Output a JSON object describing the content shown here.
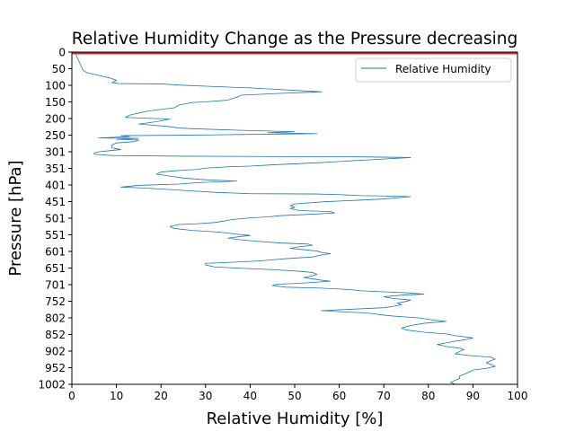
{
  "chart_data": {
    "type": "line",
    "title": "Relative Humidity Change as the Pressure decreasing",
    "xlabel": "Relative Humidity [%]",
    "ylabel": "Pressure [hPa]",
    "xlim": [
      0,
      100
    ],
    "ylim": [
      1002,
      0
    ],
    "y_inverted": true,
    "grid": false,
    "legend_position": "top-right",
    "x_ticks": [
      "0",
      "10",
      "20",
      "30",
      "40",
      "50",
      "60",
      "70",
      "80",
      "90",
      "100"
    ],
    "y_ticks": [
      "0",
      "50",
      "100",
      "150",
      "200",
      "250",
      "301",
      "351",
      "401",
      "451",
      "501",
      "551",
      "601",
      "651",
      "701",
      "752",
      "802",
      "852",
      "902",
      "952",
      "1002"
    ],
    "series_color": "#1f77b4",
    "top_band_color": "#d62728",
    "series": [
      {
        "name": "Relative Humidity",
        "points": [
          [
            0.5,
            0
          ],
          [
            1,
            10
          ],
          [
            1.5,
            25
          ],
          [
            2,
            40
          ],
          [
            2.5,
            55
          ],
          [
            3.5,
            63
          ],
          [
            6,
            70
          ],
          [
            8.5,
            78
          ],
          [
            10,
            85
          ],
          [
            9,
            92
          ],
          [
            10.5,
            95
          ],
          [
            20,
            96
          ],
          [
            25,
            100
          ],
          [
            32,
            104
          ],
          [
            40,
            108
          ],
          [
            56,
            120
          ],
          [
            46,
            125
          ],
          [
            38,
            130
          ],
          [
            37,
            136
          ],
          [
            36,
            140
          ],
          [
            35,
            145
          ],
          [
            30,
            150
          ],
          [
            27,
            152
          ],
          [
            24,
            160
          ],
          [
            23,
            168
          ],
          [
            17,
            178
          ],
          [
            13,
            190
          ],
          [
            12,
            197
          ],
          [
            18,
            200
          ],
          [
            22,
            202
          ],
          [
            19,
            210
          ],
          [
            15,
            217
          ],
          [
            22,
            225
          ],
          [
            24,
            229
          ],
          [
            27,
            231
          ],
          [
            38,
            236
          ],
          [
            50,
            240
          ],
          [
            44,
            243
          ],
          [
            55,
            246
          ],
          [
            36,
            249
          ],
          [
            22,
            251
          ],
          [
            11,
            252
          ],
          [
            13,
            255
          ],
          [
            6,
            259
          ],
          [
            15,
            260
          ],
          [
            10,
            263
          ],
          [
            15,
            265
          ],
          [
            14,
            270
          ],
          [
            10,
            274
          ],
          [
            9,
            280
          ],
          [
            9,
            289
          ],
          [
            11,
            294
          ],
          [
            8,
            298
          ],
          [
            6,
            301
          ],
          [
            5,
            304
          ],
          [
            5,
            308
          ],
          [
            9,
            312
          ],
          [
            25,
            314
          ],
          [
            65,
            316
          ],
          [
            76,
            318
          ],
          [
            68,
            324
          ],
          [
            60,
            330
          ],
          [
            55,
            334
          ],
          [
            50,
            337
          ],
          [
            45,
            340
          ],
          [
            40,
            344
          ],
          [
            35,
            346
          ],
          [
            30,
            350
          ],
          [
            28,
            354
          ],
          [
            23,
            358
          ],
          [
            20,
            362
          ],
          [
            19,
            368
          ],
          [
            22,
            374
          ],
          [
            25,
            380
          ],
          [
            30,
            385
          ],
          [
            37,
            389
          ],
          [
            28,
            394
          ],
          [
            24,
            398
          ],
          [
            15,
            402
          ],
          [
            11,
            407
          ],
          [
            16,
            410
          ],
          [
            20,
            413
          ],
          [
            26,
            418
          ],
          [
            32,
            423
          ],
          [
            40,
            427
          ],
          [
            55,
            428
          ],
          [
            60,
            430
          ],
          [
            65,
            433
          ],
          [
            70,
            434
          ],
          [
            76,
            436
          ],
          [
            70,
            443
          ],
          [
            64,
            447
          ],
          [
            57,
            451
          ],
          [
            50,
            458
          ],
          [
            49,
            463
          ],
          [
            50,
            468
          ],
          [
            49,
            472
          ],
          [
            51,
            478
          ],
          [
            58,
            481
          ],
          [
            59,
            485
          ],
          [
            54,
            489
          ],
          [
            47,
            493
          ],
          [
            44,
            497
          ],
          [
            40,
            500
          ],
          [
            36,
            505
          ],
          [
            34,
            510
          ],
          [
            32,
            514
          ],
          [
            28,
            518
          ],
          [
            24,
            520
          ],
          [
            22,
            526
          ],
          [
            23,
            532
          ],
          [
            27,
            538
          ],
          [
            33,
            543
          ],
          [
            37,
            549
          ],
          [
            40,
            553
          ],
          [
            38,
            556
          ],
          [
            35,
            561
          ],
          [
            37,
            565
          ],
          [
            41,
            570
          ],
          [
            47,
            576
          ],
          [
            53,
            579
          ],
          [
            54,
            583
          ],
          [
            51,
            587
          ],
          [
            49,
            592
          ],
          [
            52,
            596
          ],
          [
            55,
            600
          ],
          [
            56,
            604
          ],
          [
            58,
            608
          ],
          [
            56,
            612
          ],
          [
            54,
            618
          ],
          [
            48,
            623
          ],
          [
            42,
            630
          ],
          [
            34,
            635
          ],
          [
            30,
            637
          ],
          [
            30,
            642
          ],
          [
            32,
            648
          ],
          [
            38,
            652
          ],
          [
            45,
            656
          ],
          [
            52,
            662
          ],
          [
            54,
            665
          ],
          [
            55,
            670
          ],
          [
            54,
            675
          ],
          [
            52,
            680
          ],
          [
            54,
            684
          ],
          [
            56,
            688
          ],
          [
            58,
            691
          ],
          [
            55,
            694
          ],
          [
            50,
            698
          ],
          [
            46,
            700
          ],
          [
            45,
            704
          ],
          [
            48,
            709
          ],
          [
            56,
            712
          ],
          [
            62,
            716
          ],
          [
            65,
            720
          ],
          [
            70,
            723
          ],
          [
            75,
            726
          ],
          [
            79,
            730
          ],
          [
            74,
            733
          ],
          [
            70,
            738
          ],
          [
            72,
            743
          ],
          [
            76,
            748
          ],
          [
            75,
            752
          ],
          [
            73,
            757
          ],
          [
            74,
            762
          ],
          [
            72,
            767
          ],
          [
            70,
            771
          ],
          [
            62,
            776
          ],
          [
            56,
            780
          ],
          [
            60,
            783
          ],
          [
            65,
            786
          ],
          [
            68,
            789
          ],
          [
            69,
            792
          ],
          [
            72,
            796
          ],
          [
            78,
            802
          ],
          [
            81,
            808
          ],
          [
            84,
            812
          ],
          [
            79,
            818
          ],
          [
            76,
            825
          ],
          [
            74,
            832
          ],
          [
            75,
            838
          ],
          [
            79,
            845
          ],
          [
            84,
            850
          ],
          [
            86,
            855
          ],
          [
            90,
            862
          ],
          [
            88,
            868
          ],
          [
            86,
            872
          ],
          [
            84,
            877
          ],
          [
            82,
            882
          ],
          [
            84,
            888
          ],
          [
            87,
            893
          ],
          [
            88,
            897
          ],
          [
            87,
            903
          ],
          [
            86,
            910
          ],
          [
            89,
            915
          ],
          [
            94,
            920
          ],
          [
            95,
            926
          ],
          [
            94,
            931
          ],
          [
            93,
            937
          ],
          [
            94,
            942
          ],
          [
            95,
            948
          ],
          [
            93,
            954
          ],
          [
            90,
            959
          ],
          [
            89,
            966
          ],
          [
            88,
            972
          ],
          [
            87,
            977
          ],
          [
            87,
            984
          ],
          [
            86,
            990
          ],
          [
            85,
            996
          ],
          [
            86,
            1002
          ]
        ]
      }
    ]
  }
}
